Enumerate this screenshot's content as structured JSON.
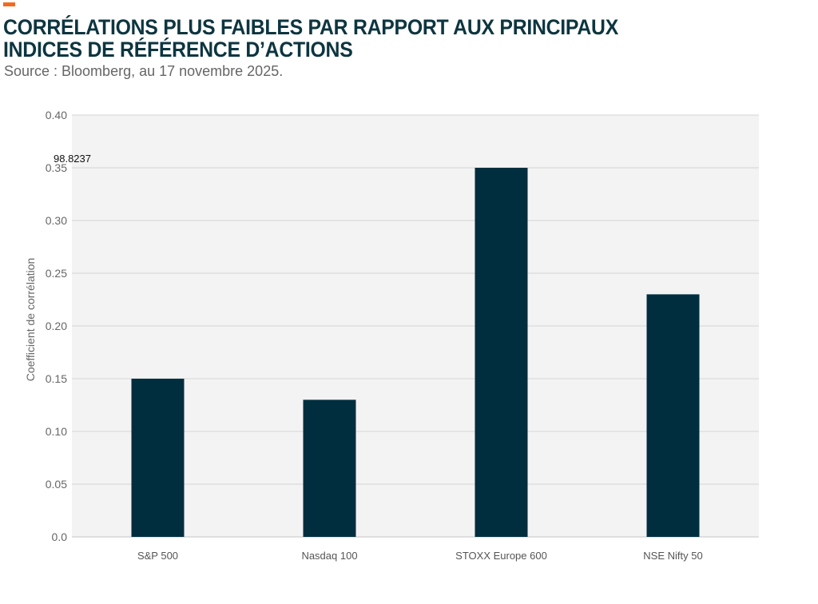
{
  "header": {
    "title": "CORRÉLATIONS PLUS FAIBLES PAR RAPPORT AUX PRINCIPAUX INDICES DE RÉFÉRENCE D’ACTIONS",
    "subtitle": "Source : Bloomberg, au 17 novembre 2025."
  },
  "colors": {
    "bar": "#002e3f",
    "accent": "#f26a21",
    "plot_background": "#f3f3f3",
    "gridline": "#d6d6d6"
  },
  "chart_data": {
    "type": "bar",
    "title": "CORRÉLATIONS PLUS FAIBLES PAR RAPPORT AUX PRINCIPAUX INDICES DE RÉFÉRENCE D’ACTIONS",
    "subtitle": "Source : Bloomberg, au 17 novembre 2025.",
    "categories": [
      "S&P 500",
      "Nasdaq 100",
      "STOXX Europe 600",
      "NSE Nifty 50"
    ],
    "values": [
      0.15,
      0.13,
      0.35,
      0.23
    ],
    "xlabel": "",
    "ylabel": "Coefficient de corrélation",
    "ylim": [
      0,
      0.4
    ],
    "yticks": [
      "0.0",
      "0.05",
      "0.10",
      "0.15",
      "0.20",
      "0.25",
      "0.30",
      "0.35",
      "0.40"
    ],
    "annotations": [
      {
        "text": "98.8237",
        "y": 0.35
      }
    ],
    "grid": true,
    "legend": "none"
  }
}
